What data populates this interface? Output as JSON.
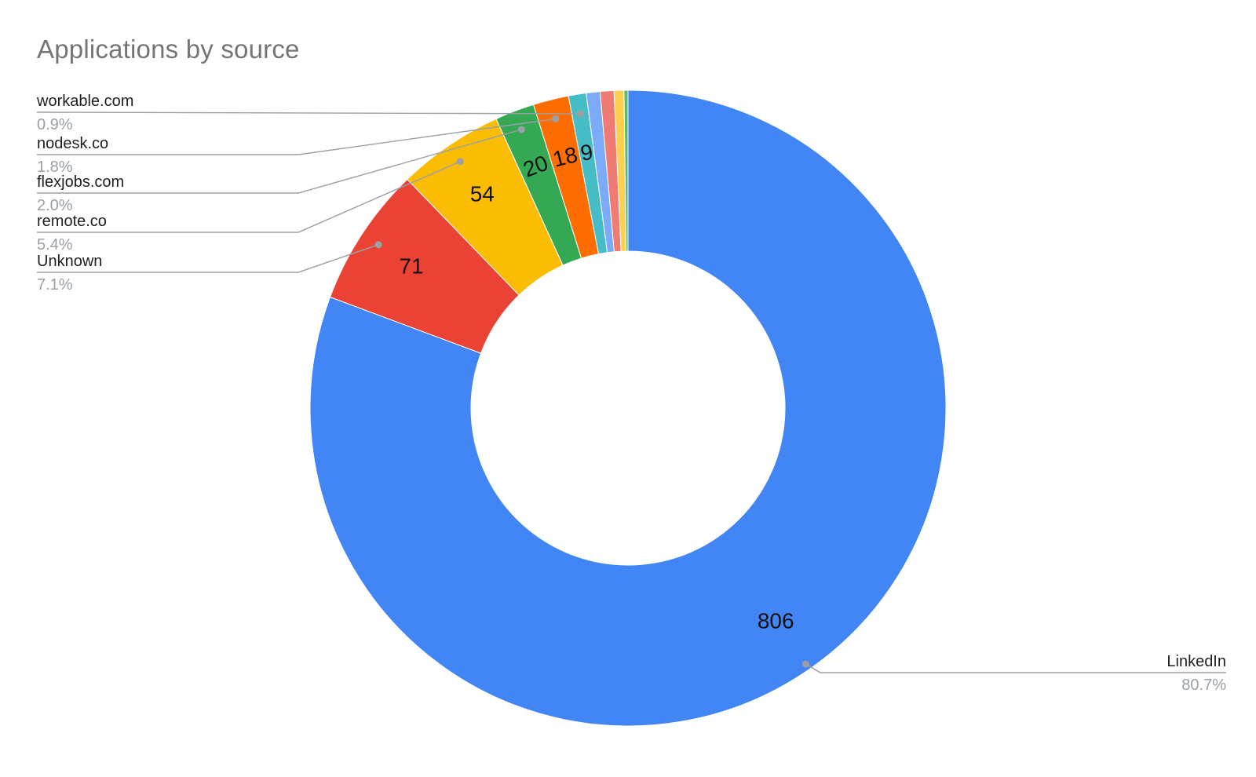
{
  "title": "Applications by source",
  "chart_data": {
    "type": "pie",
    "donut": true,
    "title": "Applications by source",
    "legend_position": "labeled-callouts",
    "background": "#ffffff",
    "slices": [
      {
        "label": "LinkedIn",
        "value": 806,
        "pct": "80.7%",
        "color": "#4285F4",
        "show_value": true,
        "callout": "right"
      },
      {
        "label": "Unknown",
        "value": 71,
        "pct": "7.1%",
        "color": "#EA4335",
        "show_value": true,
        "callout": "left"
      },
      {
        "label": "remote.co",
        "value": 54,
        "pct": "5.4%",
        "color": "#FBBC04",
        "show_value": true,
        "callout": "left"
      },
      {
        "label": "flexjobs.com",
        "value": 20,
        "pct": "2.0%",
        "color": "#34A853",
        "show_value": true,
        "callout": "left"
      },
      {
        "label": "nodesk.co",
        "value": 18,
        "pct": "1.8%",
        "color": "#FF6D01",
        "show_value": true,
        "callout": "left"
      },
      {
        "label": "workable.com",
        "value": 9,
        "pct": "0.9%",
        "color": "#46BDC6",
        "show_value": true,
        "callout": "left"
      },
      {
        "label": "",
        "value": 7,
        "color": "#7BAAF7",
        "show_value": false
      },
      {
        "label": "",
        "value": 7,
        "color": "#F07B72",
        "show_value": false
      },
      {
        "label": "",
        "value": 5,
        "color": "#FCD04F",
        "show_value": false
      },
      {
        "label": "",
        "value": 2,
        "color": "#5BB974",
        "show_value": false
      }
    ]
  }
}
